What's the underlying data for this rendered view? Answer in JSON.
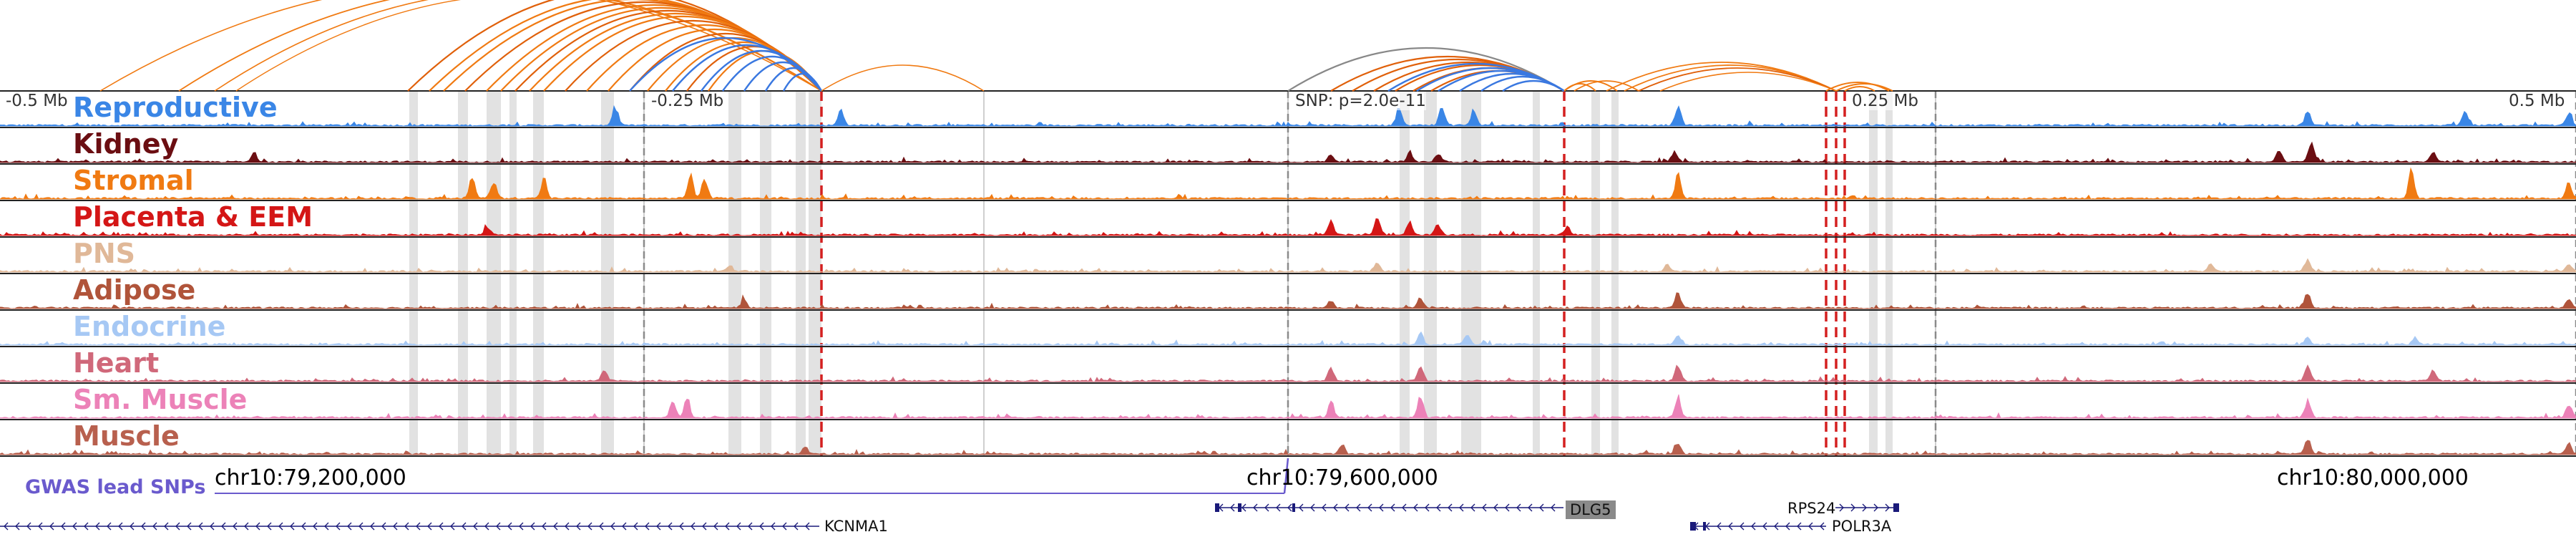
{
  "position_markers": [
    "-0.5 Mb",
    "-0.25 Mb",
    "SNP: p=2.0e-11",
    "0.25 Mb",
    "0.5 Mb"
  ],
  "tracks": [
    {
      "label": "Reproductive",
      "color": "#3a86e6"
    },
    {
      "label": "Kidney",
      "color": "#6b0e12"
    },
    {
      "label": "Stromal",
      "color": "#f07a12"
    },
    {
      "label": "Placenta & EEM",
      "color": "#d41616"
    },
    {
      "label": "PNS",
      "color": "#e0b898"
    },
    {
      "label": "Adipose",
      "color": "#b0543a"
    },
    {
      "label": "Endocrine",
      "color": "#a6c8f4"
    },
    {
      "label": "Heart",
      "color": "#d0687a"
    },
    {
      "label": "Sm. Muscle",
      "color": "#ec82b8"
    },
    {
      "label": "Muscle",
      "color": "#b8604e"
    }
  ],
  "coordinates": [
    "chr10:79,200,000",
    "chr10:79,600,000",
    "chr10:80,000,000"
  ],
  "gwas_label": "GWAS lead SNPs",
  "genes": [
    "KCNMA1",
    "DLG5",
    "RPS24",
    "POLR3A"
  ],
  "colors": {
    "loop_main": "#f07a12",
    "loop_strong": "#e0600a",
    "loop_blue": "#3a78e0",
    "loop_gray": "#888888",
    "snp_line": "#d42020",
    "gwas": "#6a5acd",
    "gene": "#1a1a7a",
    "highlight": "#d8d8d8"
  }
}
